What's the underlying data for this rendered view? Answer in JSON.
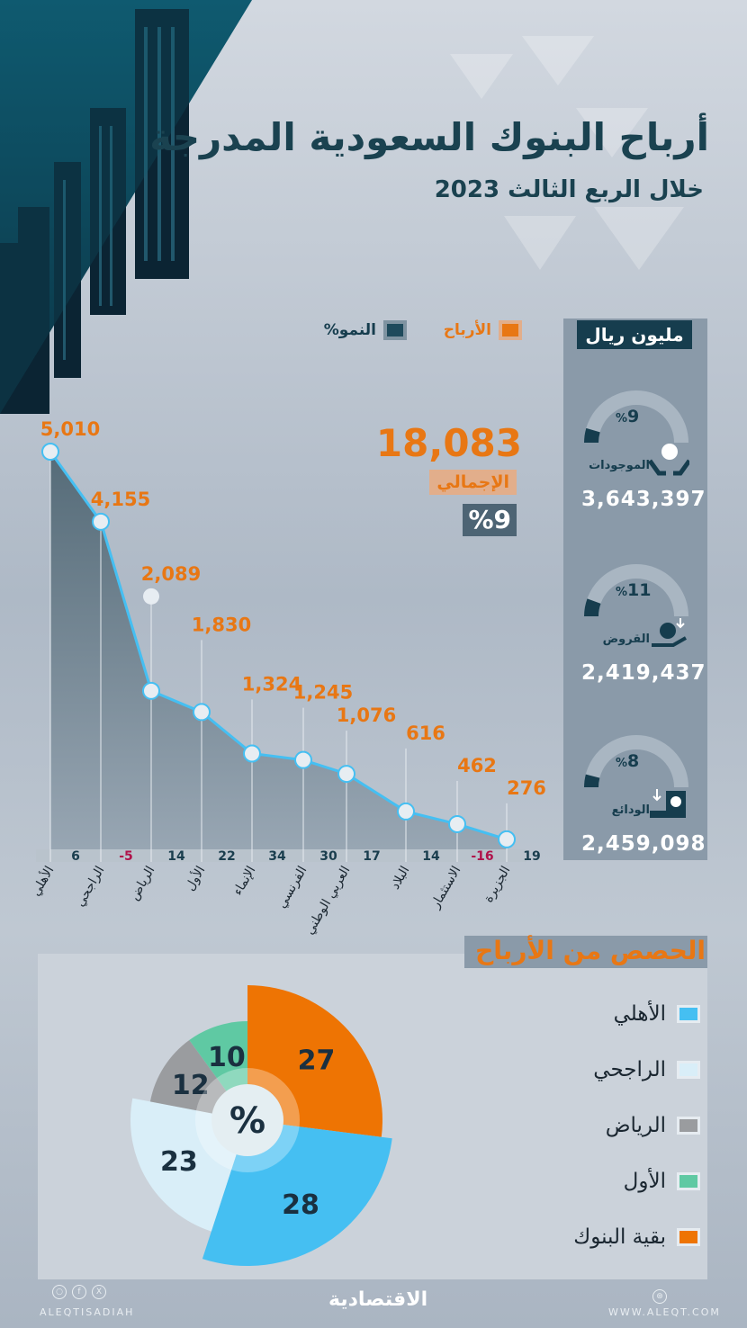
{
  "header": {
    "title": "أرباح البنوك السعودية المدرجة",
    "subtitle": "خلال الربع الثالث 2023"
  },
  "legend": {
    "profits_label": "الأرباح",
    "growth_label": "النمو%",
    "profits_color": "#e87714",
    "growth_color": "#1e4a5c"
  },
  "total": {
    "value": "18,083",
    "label": "الإجمالي",
    "growth": "9",
    "percent_sign": "%"
  },
  "stats_panel": {
    "unit": "مليون ريال",
    "items": [
      {
        "label": "الموجودات",
        "value": "3,643,397",
        "growth": "9",
        "percent_sign": "%",
        "icon": "hands-holding-coin-icon"
      },
      {
        "label": "القروض",
        "value": "2,419,437",
        "growth": "11",
        "percent_sign": "%",
        "icon": "loan-hand-icon"
      },
      {
        "label": "الودائع",
        "value": "2,459,098",
        "growth": "8",
        "percent_sign": "%",
        "icon": "deposit-safe-icon"
      }
    ]
  },
  "chart_data": [
    {
      "type": "area",
      "series": [
        {
          "name": "الأرباح",
          "values": [
            5010,
            4155,
            2089,
            1830,
            1324,
            1245,
            1076,
            616,
            462,
            276
          ]
        },
        {
          "name": "النمو%",
          "values": [
            6,
            -5,
            14,
            22,
            34,
            30,
            17,
            14,
            -16,
            19
          ]
        }
      ],
      "categories": [
        "الأهلي",
        "الراجحي",
        "الرياض",
        "الأول",
        "الإنماء",
        "الفرنسي",
        "العربي الوطني",
        "البلاد",
        "الاستثمار",
        "الجزيرة"
      ],
      "profit_labels": [
        "5,010",
        "4,155",
        "2,089",
        "1,830",
        "1,324",
        "1,245",
        "1,076",
        "616",
        "462",
        "276"
      ],
      "growth_labels": [
        "6",
        "-5",
        "14",
        "22",
        "34",
        "30",
        "17",
        "14",
        "-16",
        "19"
      ],
      "negative_color": "#b0124a",
      "line_color": "#45bff2"
    },
    {
      "type": "pie",
      "title": "الحصص من الأرباح",
      "center_label": "%",
      "slices": [
        {
          "label": "الأهلي",
          "value": 28,
          "color": "#45bff2"
        },
        {
          "label": "الراجحي",
          "value": 23,
          "color": "#d9eef8"
        },
        {
          "label": "الرياض",
          "value": 12,
          "color": "#9a9c9f"
        },
        {
          "label": "الأول",
          "value": 10,
          "color": "#5fc9a3"
        },
        {
          "label": "بقية البنوك",
          "value": 27,
          "color": "#ee7403"
        }
      ]
    }
  ],
  "footer": {
    "handle": "ALEQTISADIAH",
    "logo": "الاقتصادية",
    "website": "WWW.ALEQT.COM",
    "social_icons": [
      "instagram-icon",
      "facebook-icon",
      "x-icon"
    ],
    "circle_icons": [
      "○",
      "f",
      "X",
      "⊛"
    ]
  }
}
